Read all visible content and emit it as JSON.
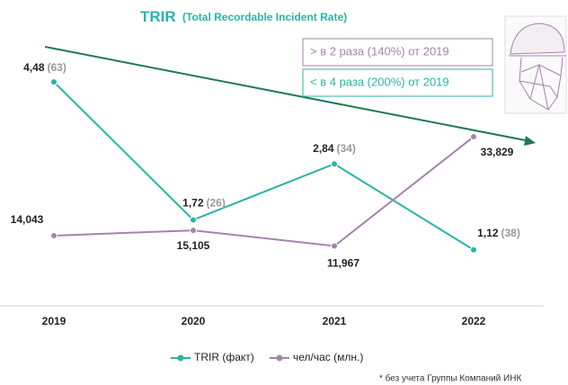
{
  "chart_data": {
    "type": "line",
    "title": "TRIR",
    "subtitle": "(Total Recordable Incident Rate)",
    "categories": [
      "2019",
      "2020",
      "2021",
      "2022"
    ],
    "series": [
      {
        "name": "TRIR (факт)",
        "color": "#2ab3a6",
        "values": [
          4.48,
          1.72,
          2.84,
          1.12
        ],
        "value_labels": [
          "4,48",
          "1,72",
          "2,84",
          "1,12"
        ],
        "annotations": [
          "(63)",
          "(26)",
          "(34)",
          "(38)"
        ]
      },
      {
        "name": "чел/час (млн.)",
        "color": "#a682ad",
        "axis": "y2",
        "values": [
          14.043,
          15.105,
          11.967,
          33.829
        ],
        "value_labels": [
          "14,043",
          "15,105",
          "11,967",
          "33,829"
        ]
      }
    ],
    "ylim": [
      0,
      5.4
    ],
    "y2lim": [
      0,
      54
    ],
    "callouts": [
      "> в 2 раза (140%) от 2019",
      "< в 4 раза (200%) от 2019"
    ],
    "footnote": "* без учета Группы Компаний ИНК"
  }
}
